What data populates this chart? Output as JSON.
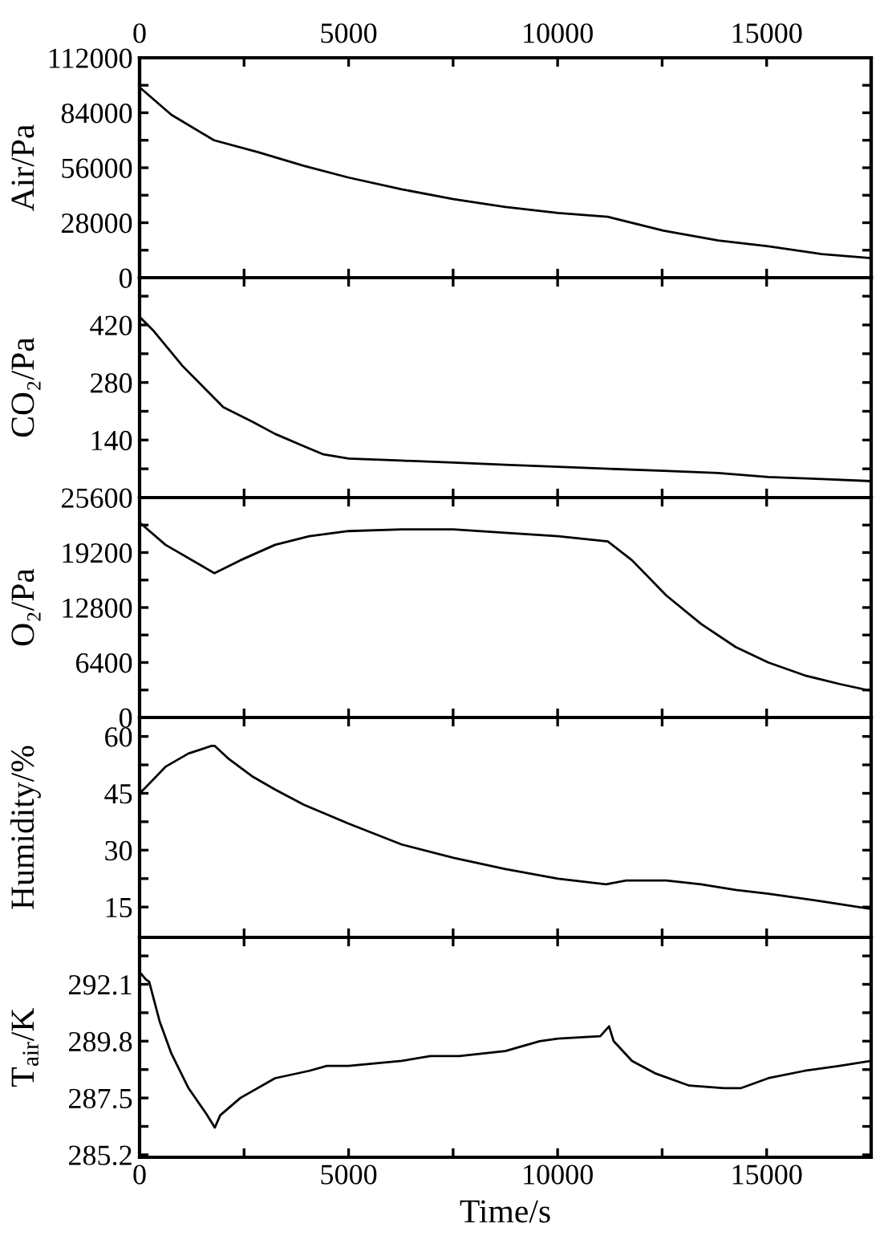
{
  "chart_data": [
    {
      "type": "line",
      "ylabel": "Air/Pa",
      "x": [
        0,
        760,
        1780,
        2820,
        3930,
        5000,
        6270,
        7510,
        8750,
        10010,
        11200,
        12530,
        13840,
        15040,
        16320,
        17500
      ],
      "series": [
        {
          "color": "#000000",
          "values": [
            97000,
            83000,
            70000,
            64000,
            57000,
            51000,
            45000,
            40000,
            36000,
            33000,
            31000,
            24000,
            19000,
            16000,
            12000,
            10000
          ]
        }
      ],
      "xlim": [
        0,
        17500
      ],
      "xticks": [
        0,
        {
          "value": 2500,
          "label": null
        },
        5000,
        {
          "value": 7500,
          "label": null
        },
        10000,
        {
          "value": 12500,
          "label": null
        },
        15000,
        {
          "value": 17500,
          "label": null
        }
      ],
      "x2lim": [
        0,
        17500
      ],
      "x2ticks": [
        0,
        {
          "value": 2500,
          "label": null
        },
        5000,
        {
          "value": 7500,
          "label": null
        },
        10000,
        {
          "value": 12500,
          "label": null
        },
        15000
      ],
      "ylim": [
        0,
        112000
      ],
      "yticks": [
        0,
        {
          "value": 14000,
          "label": null
        },
        28000,
        {
          "value": 42000,
          "label": null
        },
        56000,
        {
          "value": 70000,
          "label": null
        },
        84000,
        {
          "value": 98000,
          "label": null
        },
        112000
      ],
      "tick_labels": "y"
    },
    {
      "type": "line",
      "ylabel": "CO₂/Pa",
      "x": [
        0,
        340,
        1030,
        2000,
        2690,
        3240,
        3930,
        4400,
        5000,
        6270,
        7510,
        8750,
        10010,
        11230,
        12530,
        13840,
        15040,
        16320,
        17500
      ],
      "series": [
        {
          "color": "#000000",
          "values": [
            440,
            405,
            320,
            220,
            185,
            155,
            125,
            105,
            95,
            90,
            85,
            80,
            75,
            70,
            65,
            60,
            50,
            45,
            40
          ]
        }
      ],
      "xlim": [
        0,
        17500
      ],
      "xticks": [
        0,
        {
          "value": 2500,
          "label": null
        },
        5000,
        {
          "value": 7500,
          "label": null
        },
        10000,
        {
          "value": 12500,
          "label": null
        },
        15000
      ],
      "ylim": [
        0,
        535
      ],
      "yticks": [
        {
          "value": 70,
          "label": null
        },
        140,
        {
          "value": 210,
          "label": null
        },
        280,
        {
          "value": 350,
          "label": null
        },
        420,
        {
          "value": 490,
          "label": null
        }
      ],
      "tick_labels": "y"
    },
    {
      "type": "line",
      "ylabel": "O₂/Pa",
      "x": [
        0,
        620,
        1790,
        2410,
        3240,
        4060,
        5000,
        6270,
        7510,
        8750,
        10010,
        11200,
        11780,
        12600,
        13430,
        14260,
        15040,
        15910,
        16740,
        17500
      ],
      "series": [
        {
          "color": "#000000",
          "values": [
            22700,
            20100,
            16800,
            18300,
            20100,
            21100,
            21700,
            21900,
            21900,
            21500,
            21100,
            20500,
            18300,
            14200,
            10900,
            8200,
            6400,
            4900,
            3900,
            3100
          ]
        }
      ],
      "xlim": [
        0,
        17500
      ],
      "xticks": [
        0,
        {
          "value": 2500,
          "label": null
        },
        5000,
        {
          "value": 7500,
          "label": null
        },
        10000,
        {
          "value": 12500,
          "label": null
        },
        15000
      ],
      "ylim": [
        0,
        25600
      ],
      "yticks": [
        0,
        {
          "value": 3200,
          "label": null
        },
        6400,
        {
          "value": 9600,
          "label": null
        },
        12800,
        {
          "value": 16000,
          "label": null
        },
        19200,
        {
          "value": 22400,
          "label": null
        },
        25600
      ],
      "tick_labels": "y"
    },
    {
      "type": "line",
      "ylabel": "Humidity/%",
      "x": [
        0,
        140,
        620,
        1170,
        1720,
        1800,
        2140,
        2690,
        3240,
        3930,
        5000,
        6270,
        7510,
        8750,
        10010,
        11160,
        11640,
        12600,
        13430,
        14260,
        15040,
        16320,
        17500
      ],
      "series": [
        {
          "color": "#000000",
          "values": [
            45,
            46.5,
            52,
            55.5,
            57.5,
            57.5,
            54,
            49.5,
            46,
            42,
            37,
            31.5,
            28,
            25,
            22.5,
            21,
            22,
            22,
            21,
            19.5,
            18.5,
            16.5,
            14.5
          ]
        }
      ],
      "xlim": [
        0,
        17500
      ],
      "xticks": [
        0,
        {
          "value": 2500,
          "label": null
        },
        5000,
        {
          "value": 7500,
          "label": null
        },
        10000,
        {
          "value": 12500,
          "label": null
        },
        15000
      ],
      "ylim": [
        7,
        65
      ],
      "yticks": [
        15,
        {
          "value": 22.5,
          "label": null
        },
        30,
        {
          "value": 37.5,
          "label": null
        },
        45,
        {
          "value": 52.5,
          "label": null
        },
        60
      ],
      "tick_labels": "y"
    },
    {
      "type": "line",
      "ylabel": "T$_{air}$/K",
      "xlabel": "Time/s",
      "x": [
        0,
        150,
        230,
        480,
        760,
        1170,
        1580,
        1800,
        1930,
        2410,
        3240,
        4060,
        4480,
        5000,
        6270,
        6960,
        7650,
        8750,
        9570,
        10010,
        11020,
        11230,
        11340,
        11780,
        12330,
        13150,
        13980,
        14390,
        15040,
        15910,
        16740,
        17500
      ],
      "series": [
        {
          "color": "#000000",
          "values": [
            292.6,
            292.3,
            292.2,
            290.6,
            289.3,
            287.9,
            286.9,
            286.3,
            286.8,
            287.5,
            288.3,
            288.6,
            288.8,
            288.8,
            289.0,
            289.2,
            289.2,
            289.4,
            289.8,
            289.9,
            290.0,
            290.4,
            289.8,
            289.0,
            288.5,
            288.0,
            287.9,
            287.9,
            288.3,
            288.6,
            288.8,
            289.0
          ]
        }
      ],
      "xlim": [
        0,
        17500
      ],
      "xticks": [
        0,
        {
          "value": 2500,
          "label": null
        },
        5000,
        {
          "value": 7500,
          "label": null
        },
        10000,
        {
          "value": 12500,
          "label": null
        },
        15000
      ],
      "ylim": [
        285.1,
        294.0
      ],
      "yticks": [
        285.2,
        {
          "value": 286.35,
          "label": null
        },
        287.5,
        {
          "value": 288.65,
          "label": null
        },
        289.8,
        {
          "value": 290.95,
          "label": null
        },
        292.1,
        {
          "value": 293.25,
          "label": null
        }
      ]
    }
  ]
}
